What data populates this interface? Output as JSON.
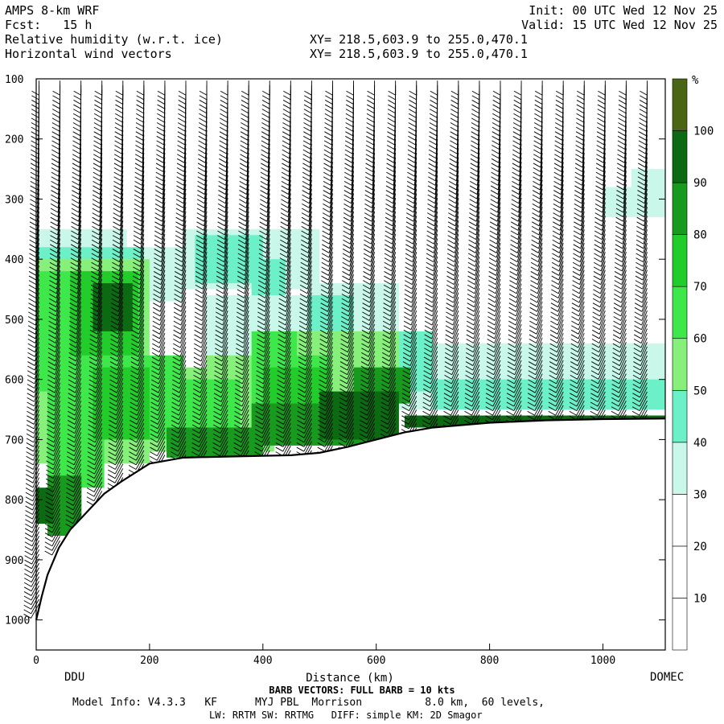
{
  "header": {
    "model": "AMPS 8-km WRF",
    "forecast": "Fcst:   15 h",
    "field1": "Relative humidity (w.r.t. ice)",
    "field2": "Horizontal wind vectors",
    "init": "Init: 00 UTC Wed 12 Nov 25",
    "valid": "Valid: 15 UTC Wed 12 Nov 25",
    "xy1": "XY= 218.5,603.9 to 255.0,470.1",
    "xy2": "XY= 218.5,603.9 to 255.0,470.1"
  },
  "footer": {
    "barb_note": "BARB VECTORS:  FULL BARB = 10 kts",
    "model_info": "Model Info: V4.3.3   KF      MYJ PBL  Morrison          8.0 km,  60 levels,",
    "physics": "LW: RRTM SW: RRTMG   DIFF: simple KM: 2D Smagor"
  },
  "chart_data": {
    "type": "heatmap",
    "xlabel": "Distance (km)",
    "ylabel": "",
    "xlim": [
      0,
      1110
    ],
    "ylim": [
      1050,
      100
    ],
    "x_ticks": [
      0,
      200,
      400,
      600,
      800,
      1000
    ],
    "y_ticks": [
      100,
      200,
      300,
      400,
      500,
      600,
      700,
      800,
      900,
      1000
    ],
    "endpoints": {
      "left": "DDU",
      "right": "DOMEC"
    },
    "colorbar": {
      "unit": "%",
      "levels": [
        10,
        20,
        30,
        40,
        50,
        60,
        70,
        80,
        90,
        100
      ],
      "colors": [
        "#ffffff",
        "#ffffff",
        "#ffffff",
        "#c9f7ea",
        "#6cf0c8",
        "#86f07a",
        "#3fe84a",
        "#22cc2a",
        "#189a1e",
        "#0c6a12",
        "#4a6614"
      ]
    },
    "terrain_km_hpa": [
      [
        0,
        1000
      ],
      [
        10,
        960
      ],
      [
        20,
        925
      ],
      [
        40,
        880
      ],
      [
        60,
        850
      ],
      [
        80,
        830
      ],
      [
        100,
        810
      ],
      [
        120,
        790
      ],
      [
        150,
        770
      ],
      [
        200,
        740
      ],
      [
        260,
        730
      ],
      [
        350,
        728
      ],
      [
        400,
        727
      ],
      [
        450,
        726
      ],
      [
        500,
        722
      ],
      [
        550,
        712
      ],
      [
        600,
        700
      ],
      [
        650,
        688
      ],
      [
        700,
        680
      ],
      [
        800,
        672
      ],
      [
        900,
        668
      ],
      [
        1000,
        666
      ],
      [
        1110,
        665
      ]
    ],
    "rh_regions": [
      {
        "rh": 35,
        "cells": [
          [
            0,
            350,
            160,
            600
          ],
          [
            160,
            380,
            260,
            470
          ],
          [
            260,
            350,
            500,
            450
          ],
          [
            300,
            460,
            480,
            560
          ],
          [
            480,
            440,
            640,
            560
          ],
          [
            620,
            540,
            1110,
            650
          ],
          [
            1050,
            250,
            1110,
            320
          ],
          [
            1000,
            280,
            1110,
            330
          ]
        ]
      },
      {
        "rh": 45,
        "cells": [
          [
            0,
            380,
            60,
            620
          ],
          [
            60,
            380,
            190,
            400
          ],
          [
            280,
            360,
            400,
            440
          ],
          [
            380,
            400,
            440,
            460
          ],
          [
            480,
            460,
            560,
            520
          ],
          [
            560,
            520,
            700,
            620
          ],
          [
            700,
            600,
            1110,
            650
          ]
        ]
      },
      {
        "rh": 55,
        "cells": [
          [
            0,
            400,
            200,
            740
          ],
          [
            200,
            580,
            300,
            720
          ],
          [
            300,
            560,
            420,
            720
          ],
          [
            420,
            520,
            640,
            700
          ]
        ]
      },
      {
        "rh": 65,
        "cells": [
          [
            0,
            420,
            190,
            620
          ],
          [
            20,
            620,
            120,
            780
          ],
          [
            180,
            560,
            260,
            700
          ],
          [
            260,
            600,
            360,
            700
          ],
          [
            380,
            520,
            460,
            700
          ],
          [
            460,
            560,
            520,
            700
          ]
        ]
      },
      {
        "rh": 75,
        "cells": [
          [
            60,
            420,
            180,
            560
          ],
          [
            100,
            580,
            200,
            700
          ],
          [
            400,
            580,
            520,
            700
          ]
        ]
      },
      {
        "rh": 85,
        "cells": [
          [
            20,
            760,
            80,
            860
          ],
          [
            230,
            680,
            400,
            730
          ],
          [
            380,
            640,
            600,
            710
          ],
          [
            560,
            580,
            660,
            640
          ]
        ]
      },
      {
        "rh": 95,
        "cells": [
          [
            0,
            780,
            30,
            840
          ],
          [
            100,
            440,
            170,
            520
          ],
          [
            500,
            620,
            640,
            700
          ],
          [
            650,
            660,
            1110,
            680
          ]
        ]
      }
    ]
  }
}
